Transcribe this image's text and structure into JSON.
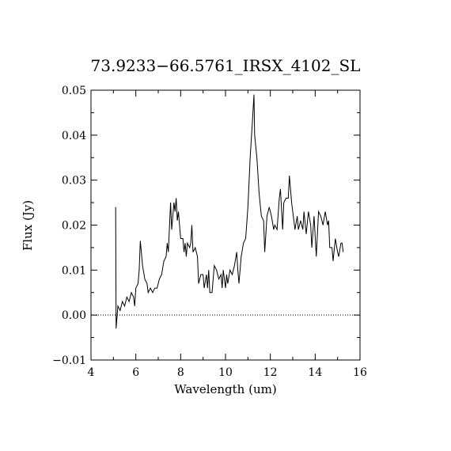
{
  "chart_data": {
    "type": "line",
    "title": "73.9233−66.5761_IRSX_4102_SL",
    "x_label": "Wavelength (um)",
    "y_label": "Flux (Jy)",
    "xlim": [
      4,
      16
    ],
    "ylim": [
      -0.01,
      0.05
    ],
    "xticks": [
      4,
      6,
      8,
      10,
      12,
      14,
      16
    ],
    "yticks": [
      {
        "value": -0.01,
        "label": "−0.01"
      },
      {
        "value": 0,
        "label": "0.00"
      },
      {
        "value": 0.01,
        "label": "0.01"
      },
      {
        "value": 0.02,
        "label": "0.02"
      },
      {
        "value": 0.03,
        "label": "0.03"
      },
      {
        "value": 0.04,
        "label": "0.04"
      },
      {
        "value": 0.05,
        "label": "0.05"
      }
    ],
    "zero_line": true,
    "color": "#000000",
    "x": [
      5.1,
      5.12,
      5.2,
      5.3,
      5.4,
      5.5,
      5.6,
      5.7,
      5.8,
      5.9,
      5.95,
      6.0,
      6.1,
      6.15,
      6.2,
      6.3,
      6.4,
      6.5,
      6.55,
      6.65,
      6.75,
      6.85,
      6.95,
      7.05,
      7.15,
      7.25,
      7.35,
      7.4,
      7.45,
      7.55,
      7.6,
      7.7,
      7.75,
      7.8,
      7.85,
      7.9,
      8.0,
      8.1,
      8.15,
      8.2,
      8.25,
      8.3,
      8.4,
      8.45,
      8.5,
      8.55,
      8.65,
      8.75,
      8.8,
      8.9,
      9.0,
      9.05,
      9.15,
      9.2,
      9.25,
      9.3,
      9.4,
      9.5,
      9.6,
      9.7,
      9.8,
      9.85,
      9.9,
      10.0,
      10.05,
      10.1,
      10.2,
      10.3,
      10.4,
      10.5,
      10.55,
      10.6,
      10.7,
      10.8,
      10.9,
      11.0,
      11.1,
      11.2,
      11.27,
      11.3,
      11.4,
      11.5,
      11.6,
      11.7,
      11.75,
      11.85,
      11.95,
      12.05,
      12.15,
      12.2,
      12.3,
      12.4,
      12.45,
      12.55,
      12.6,
      12.7,
      12.8,
      12.85,
      12.95,
      13.05,
      13.1,
      13.2,
      13.25,
      13.35,
      13.45,
      13.5,
      13.6,
      13.7,
      13.8,
      13.85,
      13.95,
      14.05,
      14.15,
      14.25,
      14.35,
      14.45,
      14.55,
      14.6,
      14.65,
      14.75,
      14.8,
      14.9,
      15.0,
      15.05,
      15.15,
      15.2,
      15.25
    ],
    "values": [
      0.024,
      -0.003,
      0.002,
      0.001,
      0.003,
      0.002,
      0.004,
      0.003,
      0.005,
      0.004,
      0.002,
      0.006,
      0.007,
      0.01,
      0.0165,
      0.011,
      0.008,
      0.007,
      0.005,
      0.006,
      0.005,
      0.006,
      0.006,
      0.008,
      0.009,
      0.012,
      0.013,
      0.016,
      0.014,
      0.025,
      0.019,
      0.025,
      0.023,
      0.026,
      0.021,
      0.023,
      0.017,
      0.017,
      0.014,
      0.016,
      0.013,
      0.016,
      0.015,
      0.016,
      0.02,
      0.014,
      0.015,
      0.013,
      0.007,
      0.009,
      0.009,
      0.006,
      0.009,
      0.006,
      0.01,
      0.005,
      0.005,
      0.011,
      0.01,
      0.008,
      0.009,
      0.006,
      0.01,
      0.006,
      0.009,
      0.007,
      0.01,
      0.009,
      0.011,
      0.014,
      0.01,
      0.007,
      0.013,
      0.016,
      0.017,
      0.024,
      0.035,
      0.043,
      0.049,
      0.04,
      0.035,
      0.027,
      0.022,
      0.021,
      0.014,
      0.022,
      0.024,
      0.022,
      0.019,
      0.02,
      0.019,
      0.026,
      0.028,
      0.019,
      0.025,
      0.026,
      0.026,
      0.031,
      0.025,
      0.021,
      0.019,
      0.022,
      0.019,
      0.021,
      0.019,
      0.023,
      0.018,
      0.023,
      0.02,
      0.015,
      0.022,
      0.013,
      0.023,
      0.022,
      0.02,
      0.023,
      0.02,
      0.021,
      0.015,
      0.015,
      0.012,
      0.017,
      0.014,
      0.013,
      0.016,
      0.016,
      0.014
    ]
  }
}
